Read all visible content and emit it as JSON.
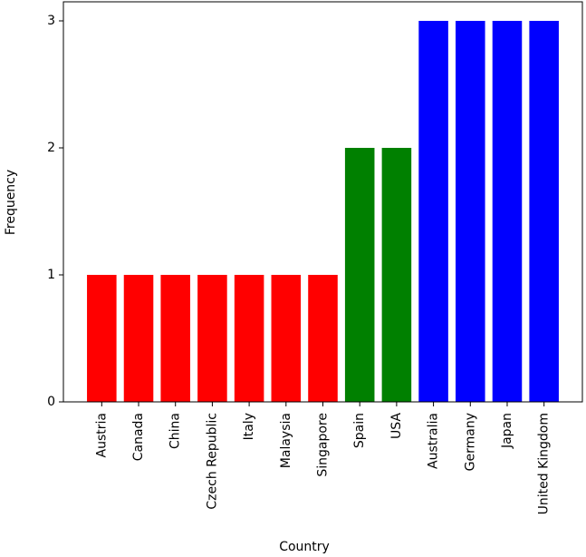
{
  "chart_data": {
    "type": "bar",
    "x_label": "Country",
    "y_label": "Frequency",
    "categories": [
      "Austria",
      "Canada",
      "China",
      "Czech Republic",
      "Italy",
      "Malaysia",
      "Singapore",
      "Spain",
      "USA",
      "Australia",
      "Germany",
      "Japan",
      "United Kingdom"
    ],
    "values": [
      1,
      1,
      1,
      1,
      1,
      1,
      1,
      2,
      2,
      3,
      3,
      3,
      3
    ],
    "colors": [
      "red",
      "red",
      "red",
      "red",
      "red",
      "red",
      "red",
      "green",
      "green",
      "blue",
      "blue",
      "blue",
      "blue"
    ],
    "ylim": [
      0,
      3.15
    ],
    "yticks": [
      0,
      1,
      2,
      3
    ],
    "grid": false
  }
}
